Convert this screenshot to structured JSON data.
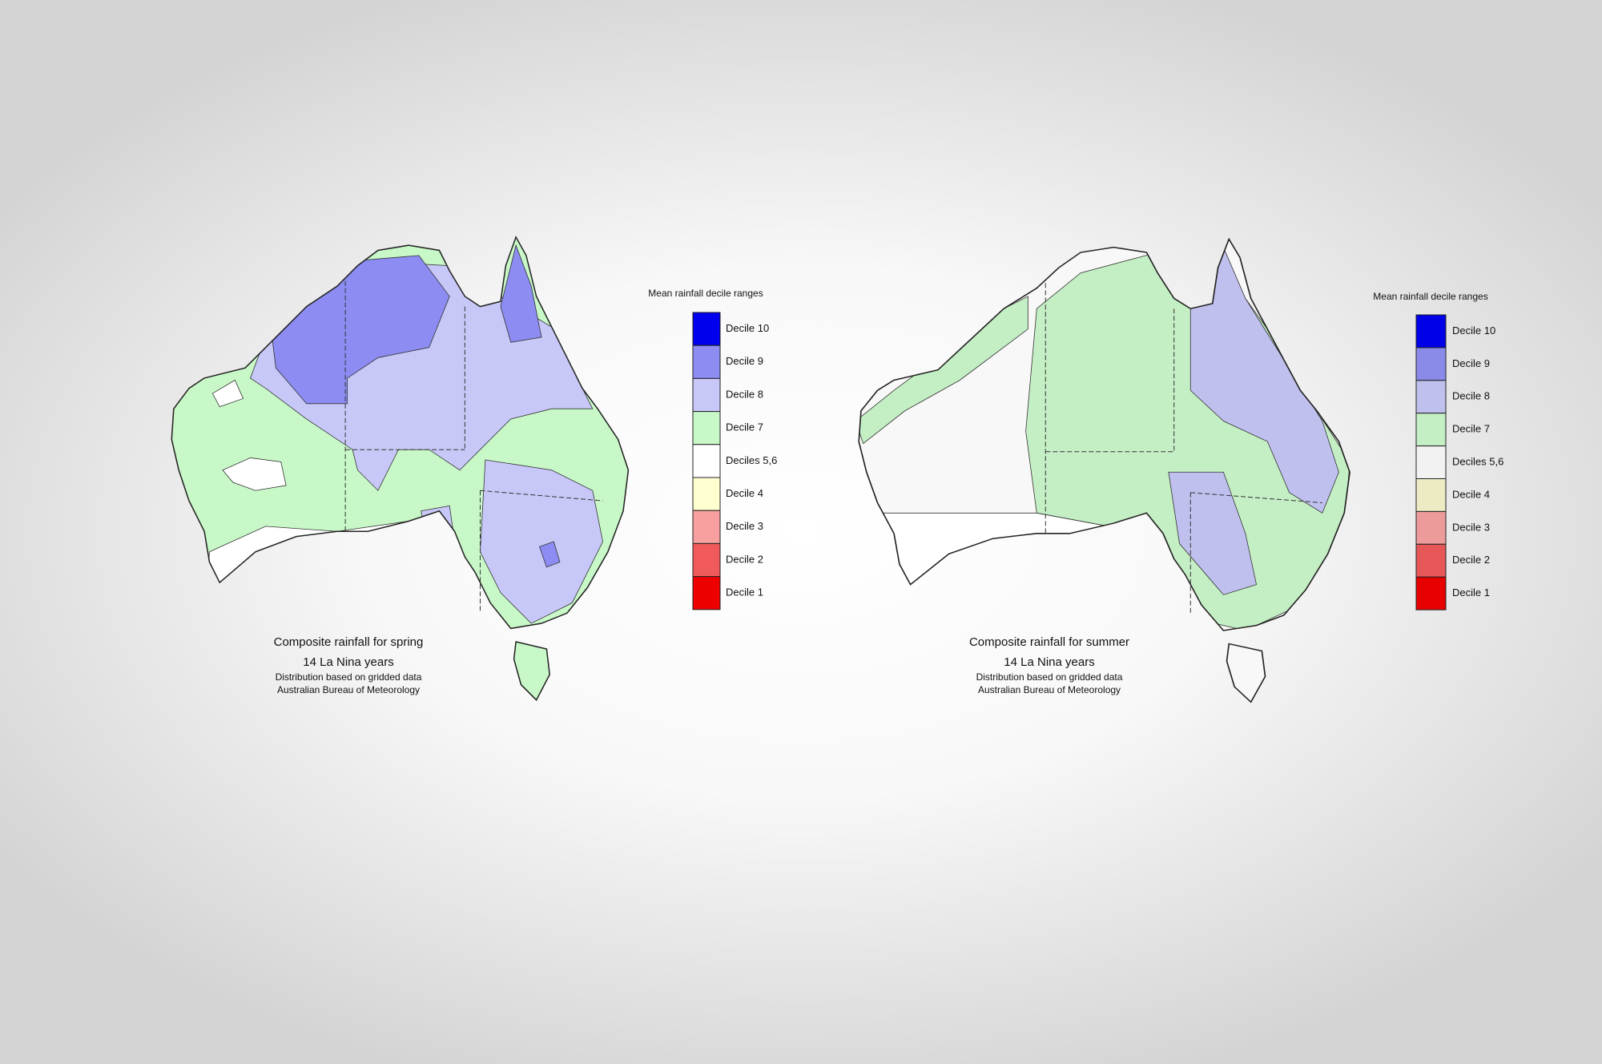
{
  "maps": [
    {
      "legend": {
        "title": "Mean rainfall decile ranges",
        "items": [
          {
            "label": "Decile 10",
            "color": "#0000ee"
          },
          {
            "label": "Decile 9",
            "color": "#8c8cf2"
          },
          {
            "label": "Decile 8",
            "color": "#c8c8f8"
          },
          {
            "label": "Decile 7",
            "color": "#c8f8c8"
          },
          {
            "label": "Deciles 5,6",
            "color": "#ffffff"
          },
          {
            "label": "Decile 4",
            "color": "#ffffd0"
          },
          {
            "label": "Decile 3",
            "color": "#f8a0a0"
          },
          {
            "label": "Decile 2",
            "color": "#f05a5a"
          },
          {
            "label": "Decile 1",
            "color": "#ee0000"
          }
        ]
      },
      "caption": [
        "Composite rainfall for spring",
        "14 La Nina years",
        "Distribution based on gridded data",
        "Australian Bureau of Meteorology"
      ]
    },
    {
      "legend": {
        "title": "Mean rainfall decile ranges",
        "items": [
          {
            "label": "Decile 10",
            "color": "#0000e6"
          },
          {
            "label": "Decile 9",
            "color": "#8a8ae8"
          },
          {
            "label": "Decile 8",
            "color": "#c0c0ee"
          },
          {
            "label": "Decile 7",
            "color": "#c4eec4"
          },
          {
            "label": "Deciles 5,6",
            "color": "#f2f2f2"
          },
          {
            "label": "Decile 4",
            "color": "#ecebc4"
          },
          {
            "label": "Decile 3",
            "color": "#ec9a9a"
          },
          {
            "label": "Decile 2",
            "color": "#e65858"
          },
          {
            "label": "Decile 1",
            "color": "#e60000"
          }
        ]
      },
      "caption": [
        "Composite rainfall for summer",
        "14 La Nina years",
        "Distribution based on gridded data",
        "Australian Bureau of Meteorology"
      ]
    }
  ]
}
